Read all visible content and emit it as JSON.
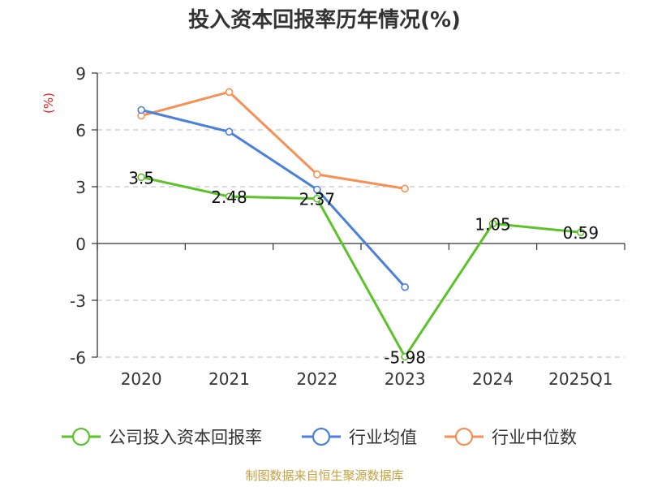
{
  "chart_data": {
    "type": "line",
    "title": "投入资本回报率历年情况(%)",
    "ylabel": "(%)",
    "categories": [
      "2020",
      "2021",
      "2022",
      "2023",
      "2024",
      "2025Q1"
    ],
    "ylim": [
      -6,
      9
    ],
    "yticks": [
      9,
      6,
      3,
      0,
      -3,
      -6
    ],
    "grid": true,
    "legend_position": "bottom",
    "series": [
      {
        "name": "公司投入资本回报率",
        "color": "#5cc22a",
        "values": [
          3.5,
          2.48,
          2.37,
          -5.98,
          1.05,
          0.59
        ],
        "labels": [
          "3.5",
          "2.48",
          "2.37",
          "-5.98",
          "1.05",
          "0.59"
        ]
      },
      {
        "name": "行业均值",
        "color": "#4a7fdc",
        "values": [
          7.05,
          5.9,
          2.85,
          -2.3,
          null,
          null
        ]
      },
      {
        "name": "行业中位数",
        "color": "#f59056",
        "values": [
          6.75,
          8.0,
          3.65,
          2.9,
          null,
          null
        ]
      }
    ]
  },
  "source": "制图数据来自恒生聚源数据库",
  "colors": {
    "title": "#333333",
    "ylabel": "#e02020",
    "source": "#c8a040",
    "axis": "#333333",
    "grid": "#c8c8c8"
  }
}
